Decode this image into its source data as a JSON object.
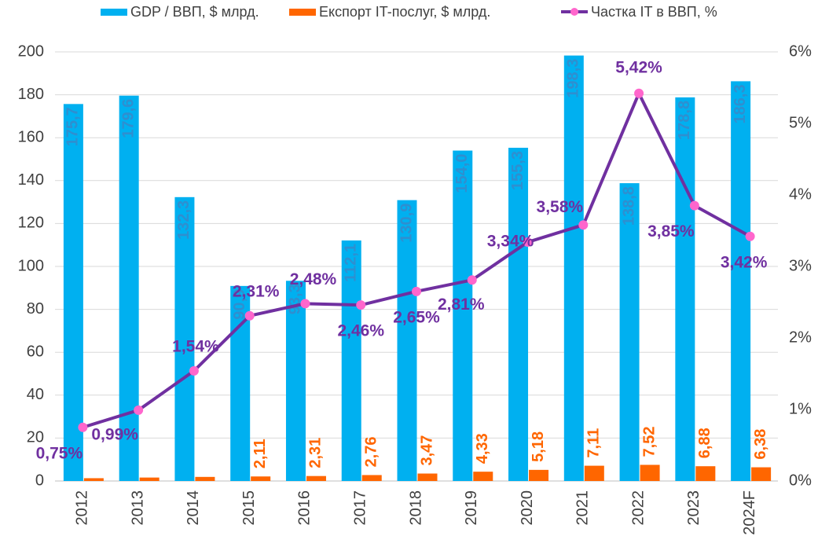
{
  "chart_data": {
    "type": "bar",
    "categories": [
      "2012",
      "2013",
      "2014",
      "2015",
      "2016",
      "2017",
      "2018",
      "2019",
      "2020",
      "2021",
      "2022",
      "2023",
      "2024F"
    ],
    "series": [
      {
        "name": "GDP / ВВП, $ млрд.",
        "type": "bar",
        "color": "#00b0f0",
        "values": [
          175.7,
          179.6,
          132.3,
          90.9,
          93.3,
          112.1,
          130.9,
          154.0,
          155.3,
          198.3,
          138.8,
          178.8,
          186.3
        ],
        "value_labels": [
          "175,7",
          "179,6",
          "132,3",
          "90,9",
          "93,3",
          "112,1",
          "130,9",
          "154,0",
          "155,3",
          "198,3",
          "138,8",
          "178,8",
          "186,3"
        ]
      },
      {
        "name": "Експорт IT-послуг, $ млрд.",
        "type": "bar",
        "color": "#ff6600",
        "values": [
          1.3,
          1.6,
          1.9,
          2.11,
          2.31,
          2.76,
          3.47,
          4.33,
          5.18,
          7.11,
          7.52,
          6.88,
          6.38
        ],
        "value_labels": [
          null,
          null,
          null,
          "2,11",
          "2,31",
          "2,76",
          "3,47",
          "4,33",
          "5,18",
          "7,11",
          "7,52",
          "6,88",
          "6,38"
        ]
      },
      {
        "name": "Частка IT в ВВП, %",
        "type": "line",
        "axis": "y2",
        "color": "#7030a0",
        "marker_color": "#ff66cc",
        "values": [
          0.75,
          0.99,
          1.54,
          2.31,
          2.48,
          2.46,
          2.65,
          2.81,
          3.34,
          3.58,
          5.42,
          3.85,
          3.42
        ],
        "value_labels": [
          "0,75%",
          "0,99%",
          "1,54%",
          "2,31%",
          "2,48%",
          "2,46%",
          "2,65%",
          "2,81%",
          "3,34%",
          "3,58%",
          "5,42%",
          "3,85%",
          "3,42%"
        ]
      }
    ],
    "ylim": [
      0,
      200
    ],
    "yticks": [
      0,
      20,
      40,
      60,
      80,
      100,
      120,
      140,
      160,
      180,
      200
    ],
    "y2lim": [
      0,
      6
    ],
    "y2ticks": [
      {
        "value": 0,
        "label": "0%"
      },
      {
        "value": 1,
        "label": "1%"
      },
      {
        "value": 2,
        "label": "2%"
      },
      {
        "value": 3,
        "label": "3%"
      },
      {
        "value": 4,
        "label": "4%"
      },
      {
        "value": 5,
        "label": "5%"
      },
      {
        "value": 6,
        "label": "6%"
      }
    ],
    "grid": true,
    "legend": "top"
  }
}
